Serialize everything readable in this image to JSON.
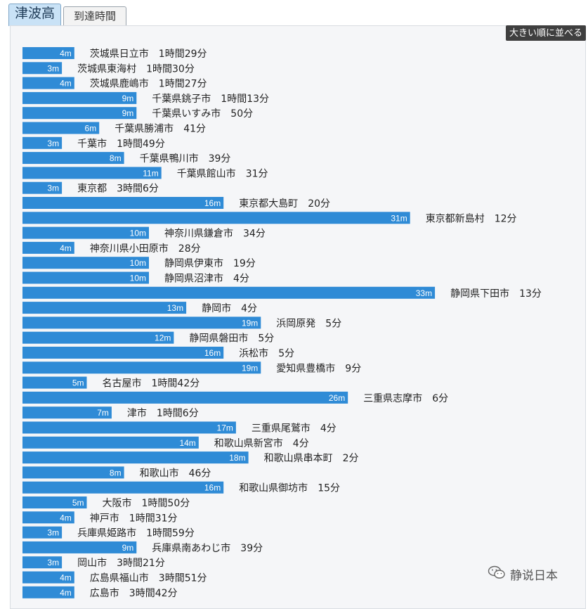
{
  "tabs": {
    "active_label": "津波高",
    "inactive_label": "到達時間"
  },
  "sort_button_label": "大きい順に並べる",
  "watermark_text": "静说日本",
  "colors": {
    "bar": "#2f8bd6",
    "bar_text": "#ffffff",
    "label": "#222222"
  },
  "chart_data": {
    "type": "bar",
    "orientation": "horizontal",
    "unit": "m",
    "rows": [
      {
        "place": "茨城県日立市",
        "height": 4,
        "time": "1時間29分"
      },
      {
        "place": "茨城県東海村",
        "height": 3,
        "time": "1時間30分"
      },
      {
        "place": "茨城県鹿嶋市",
        "height": 4,
        "time": "1時間27分"
      },
      {
        "place": "千葉県銚子市",
        "height": 9,
        "time": "1時間13分"
      },
      {
        "place": "千葉県いすみ市",
        "height": 9,
        "time": "50分"
      },
      {
        "place": "千葉県勝浦市",
        "height": 6,
        "time": "41分"
      },
      {
        "place": "千葉市",
        "height": 3,
        "time": "1時間49分"
      },
      {
        "place": "千葉県鴨川市",
        "height": 8,
        "time": "39分"
      },
      {
        "place": "千葉県館山市",
        "height": 11,
        "time": "31分"
      },
      {
        "place": "東京都",
        "height": 3,
        "time": "3時間6分"
      },
      {
        "place": "東京都大島町",
        "height": 16,
        "time": "20分"
      },
      {
        "place": "東京都新島村",
        "height": 31,
        "time": "12分"
      },
      {
        "place": "神奈川県鎌倉市",
        "height": 10,
        "time": "34分"
      },
      {
        "place": "神奈川県小田原市",
        "height": 4,
        "time": "28分"
      },
      {
        "place": "静岡県伊東市",
        "height": 10,
        "time": "19分"
      },
      {
        "place": "静岡県沼津市",
        "height": 10,
        "time": "4分"
      },
      {
        "place": "静岡県下田市",
        "height": 33,
        "time": "13分"
      },
      {
        "place": "静岡市",
        "height": 13,
        "time": "4分"
      },
      {
        "place": "浜岡原発",
        "height": 19,
        "time": "5分"
      },
      {
        "place": "静岡県磐田市",
        "height": 12,
        "time": "5分"
      },
      {
        "place": "浜松市",
        "height": 16,
        "time": "5分"
      },
      {
        "place": "愛知県豊橋市",
        "height": 19,
        "time": "9分"
      },
      {
        "place": "名古屋市",
        "height": 5,
        "time": "1時間42分"
      },
      {
        "place": "三重県志摩市",
        "height": 26,
        "time": "6分"
      },
      {
        "place": "津市",
        "height": 7,
        "time": "1時間6分"
      },
      {
        "place": "三重県尾鷲市",
        "height": 17,
        "time": "4分"
      },
      {
        "place": "和歌山県新宮市",
        "height": 14,
        "time": "4分"
      },
      {
        "place": "和歌山県串本町",
        "height": 18,
        "time": "2分"
      },
      {
        "place": "和歌山市",
        "height": 8,
        "time": "46分"
      },
      {
        "place": "和歌山県御坊市",
        "height": 16,
        "time": "15分"
      },
      {
        "place": "大阪市",
        "height": 5,
        "time": "1時間50分"
      },
      {
        "place": "神戸市",
        "height": 4,
        "time": "1時間31分"
      },
      {
        "place": "兵庫県姫路市",
        "height": 3,
        "time": "1時間59分"
      },
      {
        "place": "兵庫県南あわじ市",
        "height": 9,
        "time": "39分"
      },
      {
        "place": "岡山市",
        "height": 3,
        "time": "3時間21分"
      },
      {
        "place": "広島県福山市",
        "height": 4,
        "time": "3時間51分"
      },
      {
        "place": "広島市",
        "height": 4,
        "time": "3時間42分"
      }
    ]
  }
}
